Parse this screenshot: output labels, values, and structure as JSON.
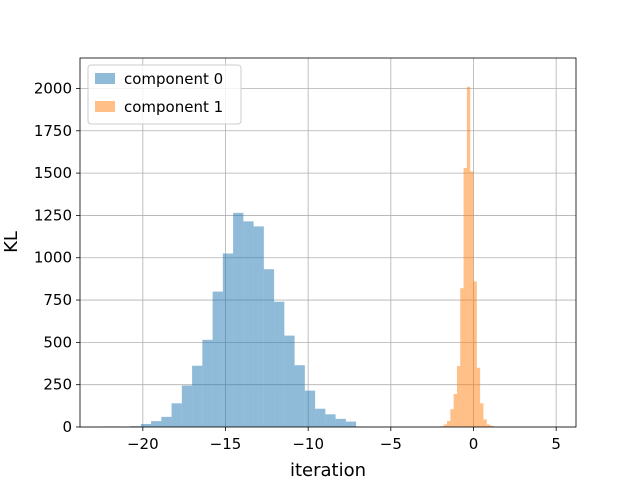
{
  "chart_data": {
    "type": "bar",
    "subtype": "histogram",
    "title": "",
    "xlabel": "iteration",
    "ylabel": "KL",
    "xlim": [
      -23.8,
      6.2
    ],
    "ylim": [
      0,
      2180
    ],
    "grid": true,
    "legend_position": "top-left",
    "x_ticks": [
      -20,
      -15,
      -10,
      -5,
      0,
      5
    ],
    "x_tick_labels": [
      "−20",
      "−15",
      "−10",
      "−5",
      "0",
      "5"
    ],
    "y_ticks": [
      0,
      250,
      500,
      750,
      1000,
      1250,
      1500,
      1750,
      2000
    ],
    "y_tick_labels": [
      "0",
      "250",
      "500",
      "750",
      "1000",
      "1250",
      "1500",
      "1750",
      "2000"
    ],
    "series": [
      {
        "name": "component 0",
        "color": "#1f77b4",
        "opacity": 0.5,
        "bin_start": -22.6,
        "bin_width": 0.62,
        "counts": [
          3,
          3,
          2,
          5,
          18,
          35,
          60,
          140,
          245,
          362,
          515,
          800,
          1025,
          1265,
          1215,
          1185,
          932,
          740,
          540,
          365,
          215,
          108,
          75,
          48,
          32,
          3
        ]
      },
      {
        "name": "component 1",
        "color": "#ff7f0e",
        "opacity": 0.5,
        "bin_start": -2.0,
        "bin_width": 0.2,
        "counts": [
          5,
          15,
          35,
          105,
          195,
          360,
          820,
          1530,
          2010,
          1510,
          860,
          350,
          140,
          45,
          15,
          8
        ]
      }
    ]
  }
}
